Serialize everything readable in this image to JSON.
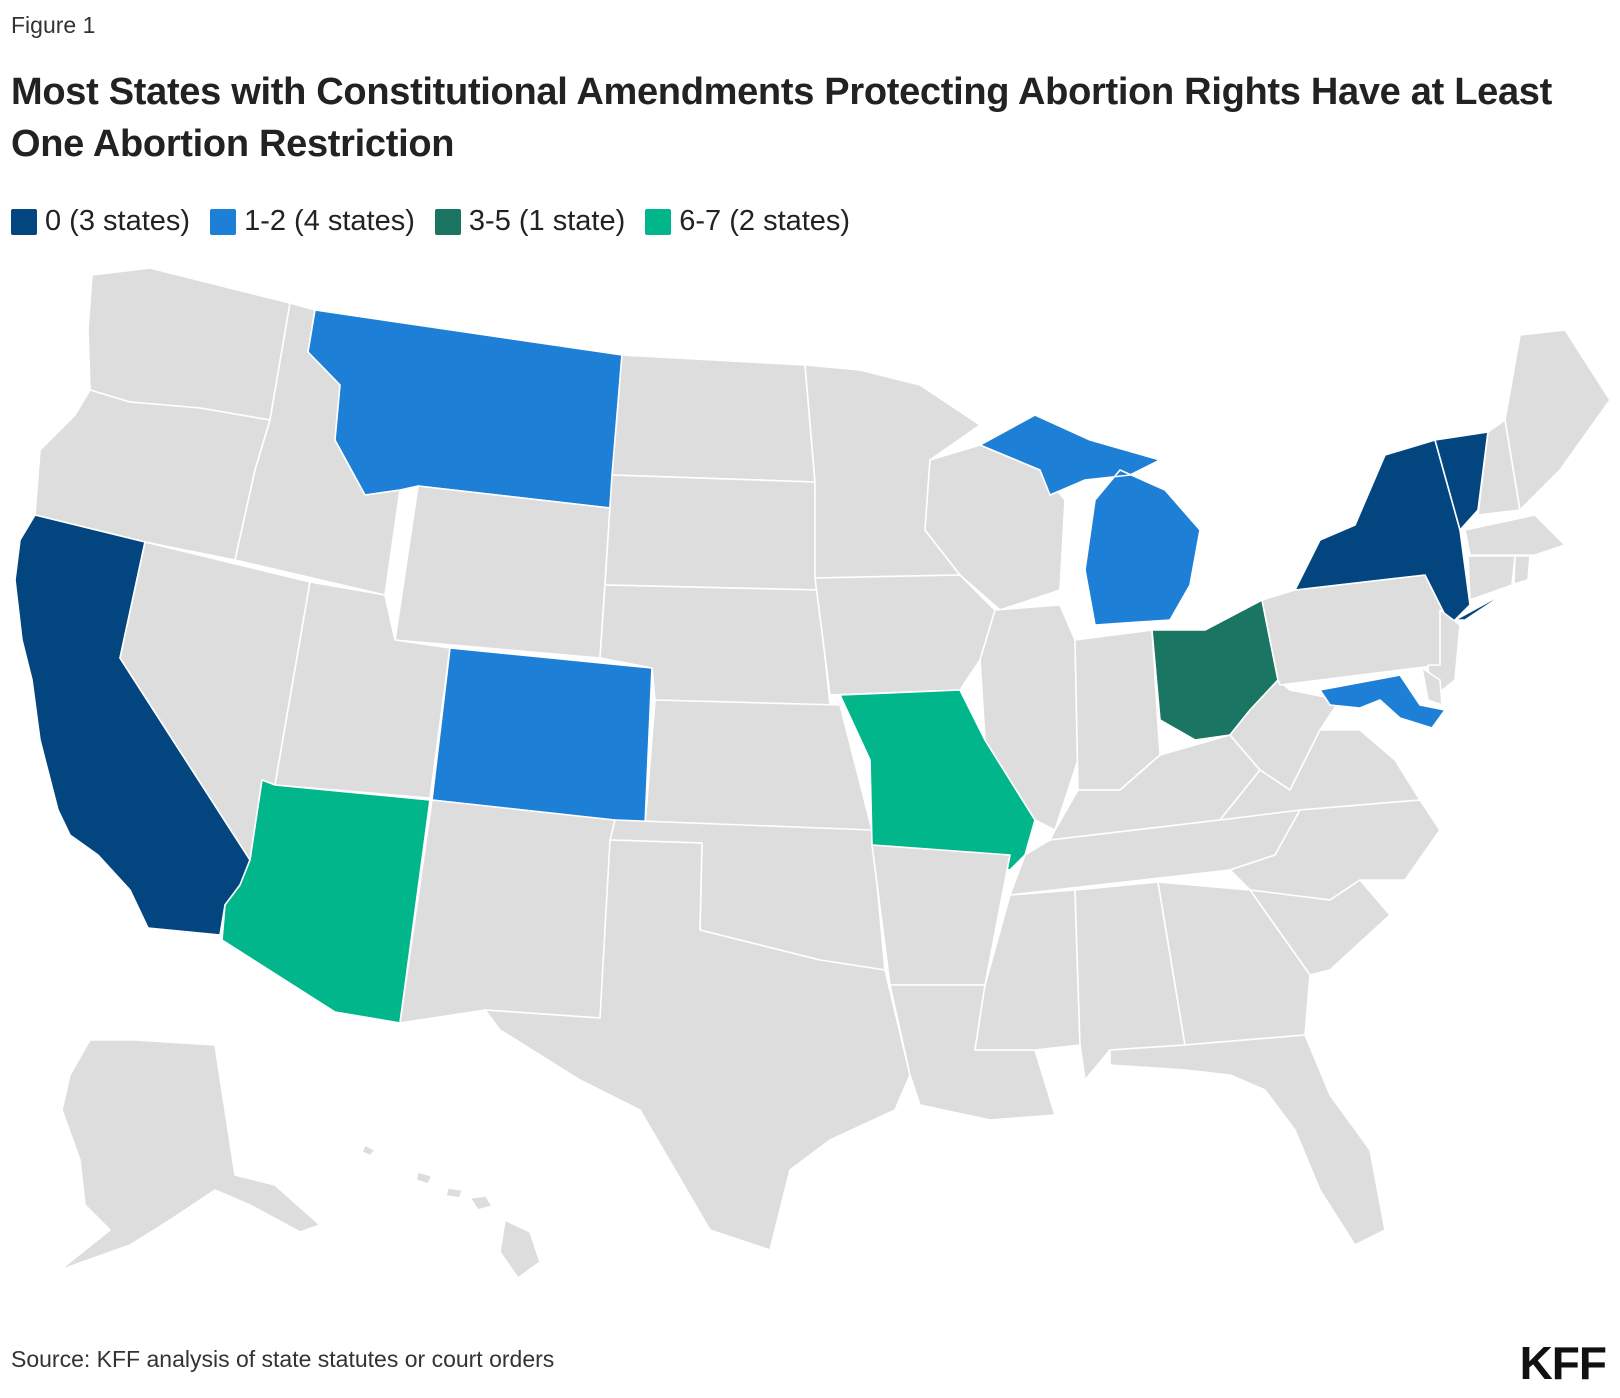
{
  "figure_label": "Figure 1",
  "title": "Most States with Constitutional Amendments Protecting Abortion Rights Have at Least One Abortion Restriction",
  "legend": [
    {
      "label": "0 (3 states)",
      "color": "#03467f"
    },
    {
      "label": "1-2 (4 states)",
      "color": "#1e7fd6"
    },
    {
      "label": "3-5 (1 state)",
      "color": "#1a7563"
    },
    {
      "label": "6-7 (2 states)",
      "color": "#00b68a"
    }
  ],
  "map": {
    "default_color": "#dddddd",
    "states": [
      {
        "name": "California",
        "category": "0 (3 states)"
      },
      {
        "name": "New York",
        "category": "0 (3 states)"
      },
      {
        "name": "Vermont",
        "category": "0 (3 states)"
      },
      {
        "name": "Montana",
        "category": "1-2 (4 states)"
      },
      {
        "name": "Colorado",
        "category": "1-2 (4 states)"
      },
      {
        "name": "Michigan",
        "category": "1-2 (4 states)"
      },
      {
        "name": "Maryland",
        "category": "1-2 (4 states)"
      },
      {
        "name": "Ohio",
        "category": "3-5 (1 state)"
      },
      {
        "name": "Arizona",
        "category": "6-7 (2 states)"
      },
      {
        "name": "Missouri",
        "category": "6-7 (2 states)"
      }
    ]
  },
  "source": "Source: KFF analysis of state statutes or court orders",
  "logo": "KFF"
}
